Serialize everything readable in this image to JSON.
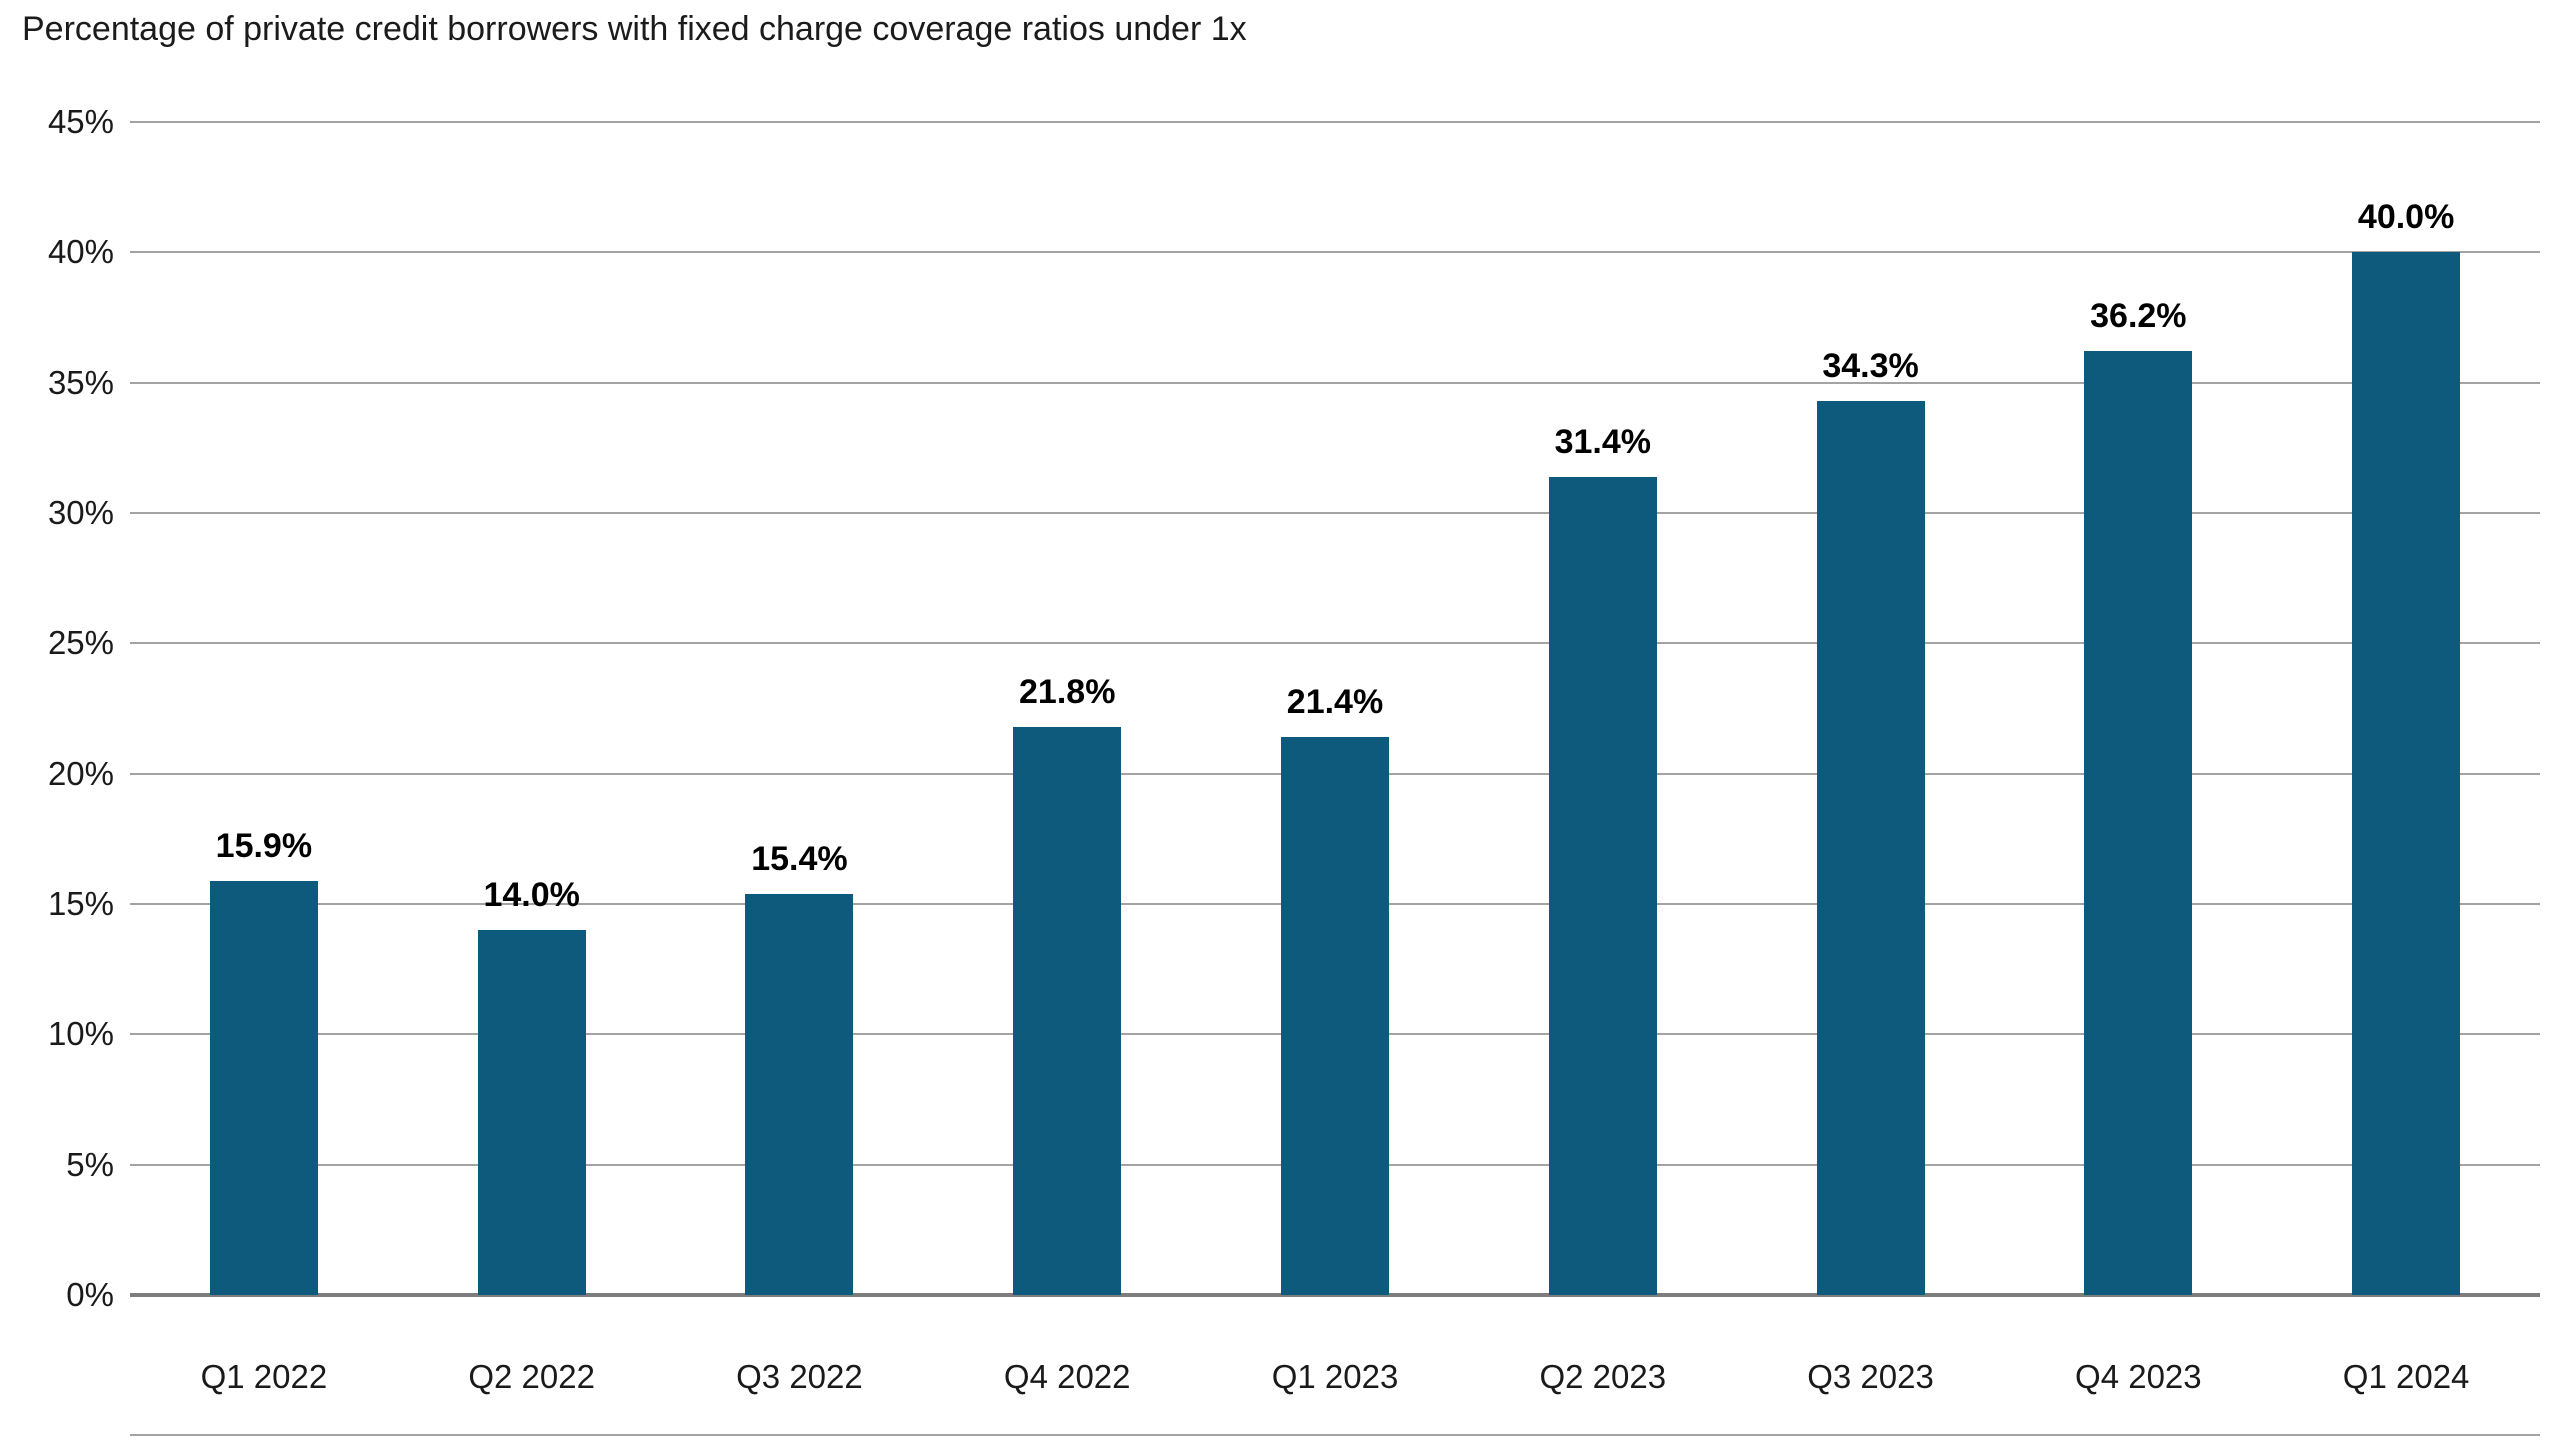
{
  "chart_data": {
    "type": "bar",
    "title": "Percentage of private credit borrowers with fixed charge coverage ratios under 1x",
    "categories": [
      "Q1 2022",
      "Q2 2022",
      "Q3 2022",
      "Q4 2022",
      "Q1 2023",
      "Q2 2023",
      "Q3 2023",
      "Q4 2023",
      "Q1 2024"
    ],
    "values": [
      15.9,
      14.0,
      15.4,
      21.8,
      21.4,
      31.4,
      34.3,
      36.2,
      40.0
    ],
    "value_labels": [
      "15.9%",
      "14.0%",
      "15.4%",
      "21.8%",
      "21.4%",
      "31.4%",
      "34.3%",
      "36.2%",
      "40.0%"
    ],
    "xlabel": "",
    "ylabel": "",
    "ylim": [
      0,
      45
    ],
    "yticks": [
      {
        "value": 0,
        "label": "0%"
      },
      {
        "value": 5,
        "label": "5%"
      },
      {
        "value": 10,
        "label": "10%"
      },
      {
        "value": 15,
        "label": "15%"
      },
      {
        "value": 20,
        "label": "20%"
      },
      {
        "value": 25,
        "label": "25%"
      },
      {
        "value": 30,
        "label": "30%"
      },
      {
        "value": 35,
        "label": "35%"
      },
      {
        "value": 40,
        "label": "40%"
      },
      {
        "value": 45,
        "label": "45%"
      }
    ],
    "grid": "horizontal",
    "legend": "none",
    "bar_color": "#0E5A7D",
    "gridline_color": "#A3A3A3",
    "axis_line_color": "#7D7D7D",
    "label_color": "#000000"
  }
}
